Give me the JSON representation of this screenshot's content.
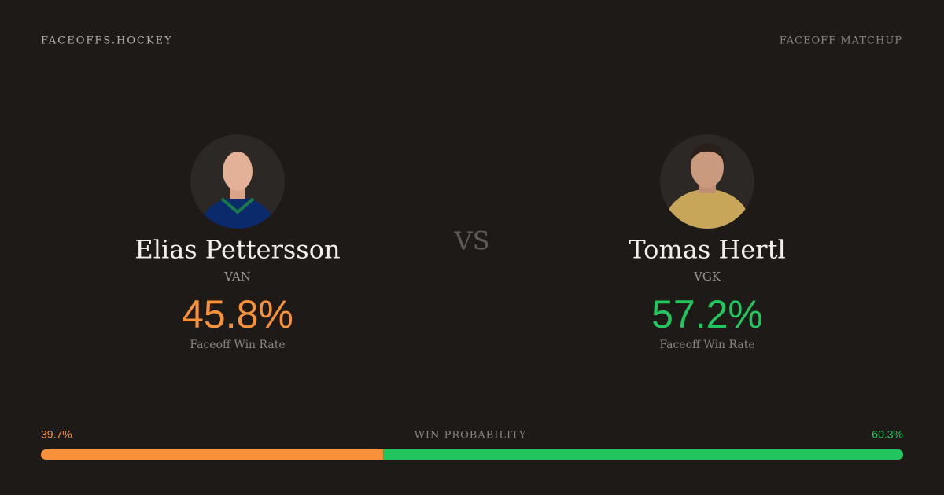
{
  "header": {
    "brand": "FACEOFFS.HOCKEY",
    "label": "FACEOFF MATCHUP"
  },
  "players": [
    {
      "name": "Elias Pettersson",
      "team": "VAN",
      "rate": "45.8%",
      "rate_label": "Faceoff Win Rate",
      "color": "#f7923a"
    },
    {
      "name": "Tomas Hertl",
      "team": "VGK",
      "rate": "57.2%",
      "rate_label": "Faceoff Win Rate",
      "color": "#22c55e"
    }
  ],
  "vs": "VS",
  "probability": {
    "title": "WIN PROBABILITY",
    "values": [
      39.7,
      60.3
    ],
    "value_labels": [
      "39.7%",
      "60.3%"
    ],
    "colors": [
      "#f7923a",
      "#22c55e"
    ]
  }
}
